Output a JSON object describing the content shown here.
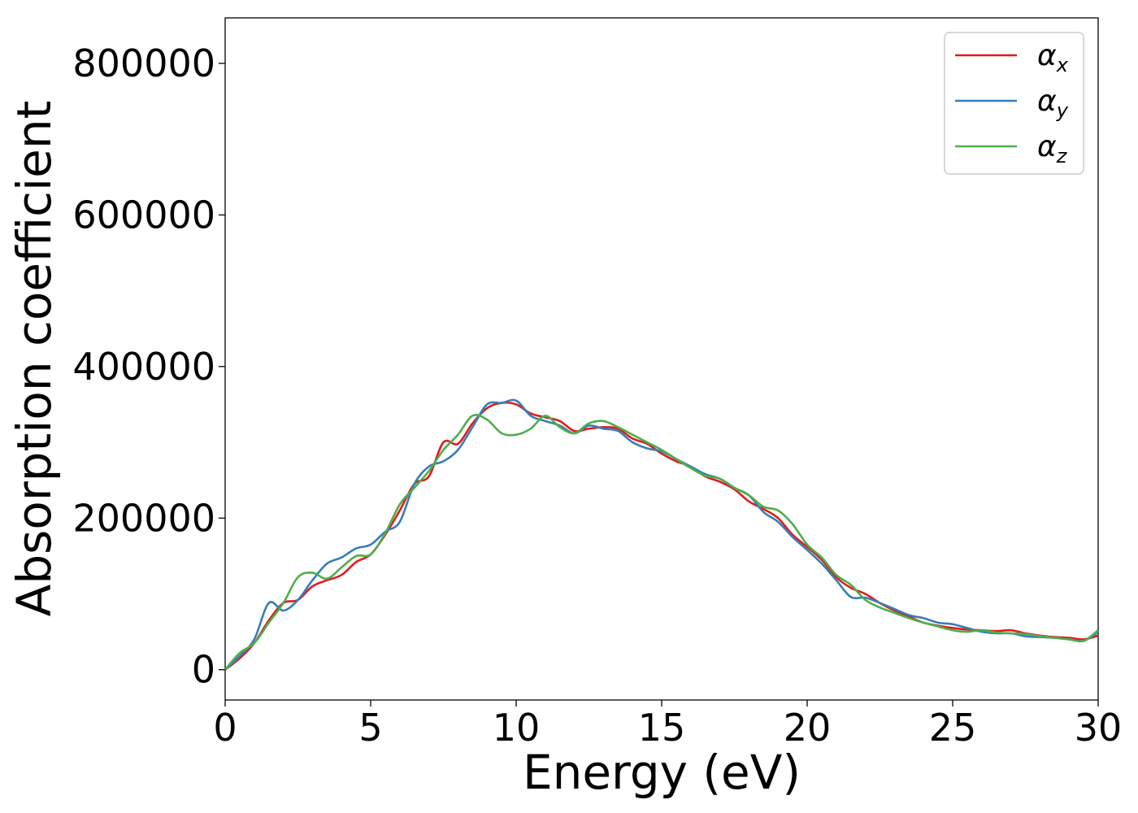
{
  "chart_data": {
    "type": "line",
    "title": "",
    "xlabel": "Energy (eV)",
    "ylabel": "Absorption coefficient",
    "xlim": [
      0,
      30
    ],
    "ylim": [
      -40000,
      860000
    ],
    "xticks": [
      0,
      5,
      10,
      15,
      20,
      25,
      30
    ],
    "xtick_labels": [
      "0",
      "5",
      "10",
      "15",
      "20",
      "25",
      "30"
    ],
    "yticks": [
      0,
      200000,
      400000,
      600000,
      800000
    ],
    "ytick_labels": [
      "0",
      "200000",
      "400000",
      "600000",
      "800000"
    ],
    "grid": false,
    "legend_position": "top-right",
    "series": [
      {
        "name": "α",
        "subscript": "x",
        "color": "#e41a1c",
        "x": [
          0,
          0.5,
          1,
          1.5,
          2,
          2.5,
          3,
          3.5,
          4,
          4.5,
          5,
          5.5,
          6,
          6.5,
          7,
          7.5,
          8,
          8.5,
          9,
          9.5,
          10,
          10.5,
          11,
          11.5,
          12,
          12.5,
          13,
          13.5,
          14,
          14.5,
          15,
          15.5,
          16,
          16.5,
          17,
          17.5,
          18,
          18.5,
          19,
          19.5,
          20,
          20.5,
          21,
          21.5,
          22,
          22.5,
          23,
          23.5,
          24,
          24.5,
          25,
          25.5,
          26,
          26.5,
          27,
          27.5,
          28,
          28.5,
          29,
          29.5,
          30
        ],
        "y": [
          0,
          15000,
          35000,
          65000,
          88000,
          92000,
          110000,
          118000,
          125000,
          142000,
          152000,
          178000,
          210000,
          245000,
          255000,
          300000,
          298000,
          325000,
          345000,
          352000,
          350000,
          338000,
          333000,
          328000,
          315000,
          318000,
          320000,
          318000,
          305000,
          298000,
          285000,
          275000,
          268000,
          255000,
          248000,
          238000,
          222000,
          212000,
          200000,
          178000,
          162000,
          145000,
          122000,
          108000,
          100000,
          88000,
          78000,
          70000,
          62000,
          58000,
          55000,
          53000,
          52000,
          51000,
          52000,
          48000,
          45000,
          43000,
          42000,
          40000,
          45000
        ]
      },
      {
        "name": "α",
        "subscript": "y",
        "color": "#377eb8",
        "x": [
          0,
          0.5,
          1,
          1.5,
          2,
          2.5,
          3,
          3.5,
          4,
          4.5,
          5,
          5.5,
          6,
          6.5,
          7,
          7.5,
          8,
          8.5,
          9,
          9.5,
          10,
          10.5,
          11,
          11.5,
          12,
          12.5,
          13,
          13.5,
          14,
          14.5,
          15,
          15.5,
          16,
          16.5,
          17,
          17.5,
          18,
          18.5,
          19,
          19.5,
          20,
          20.5,
          21,
          21.5,
          22,
          22.5,
          23,
          23.5,
          24,
          24.5,
          25,
          25.5,
          26,
          26.5,
          27,
          27.5,
          28,
          28.5,
          29,
          29.5,
          30
        ],
        "y": [
          0,
          18000,
          40000,
          88000,
          78000,
          92000,
          118000,
          140000,
          148000,
          160000,
          165000,
          182000,
          195000,
          245000,
          268000,
          275000,
          290000,
          320000,
          350000,
          352000,
          355000,
          335000,
          328000,
          322000,
          312000,
          322000,
          318000,
          315000,
          300000,
          292000,
          288000,
          278000,
          268000,
          258000,
          252000,
          240000,
          230000,
          208000,
          195000,
          175000,
          158000,
          140000,
          118000,
          96000,
          95000,
          88000,
          80000,
          72000,
          68000,
          62000,
          60000,
          55000,
          50000,
          48000,
          48000,
          44000,
          43000,
          42000,
          40000,
          38000,
          50000
        ]
      },
      {
        "name": "α",
        "subscript": "z",
        "color": "#4daf4a",
        "x": [
          0,
          0.5,
          1,
          1.5,
          2,
          2.5,
          3,
          3.5,
          4,
          4.5,
          5,
          5.5,
          6,
          6.5,
          7,
          7.5,
          8,
          8.5,
          9,
          9.5,
          10,
          10.5,
          11,
          11.5,
          12,
          12.5,
          13,
          13.5,
          14,
          14.5,
          15,
          15.5,
          16,
          16.5,
          17,
          17.5,
          18,
          18.5,
          19,
          19.5,
          20,
          20.5,
          21,
          21.5,
          22,
          22.5,
          23,
          23.5,
          24,
          24.5,
          25,
          25.5,
          26,
          26.5,
          27,
          27.5,
          28,
          28.5,
          29,
          29.5,
          30
        ],
        "y": [
          0,
          22000,
          35000,
          62000,
          88000,
          122000,
          128000,
          120000,
          135000,
          150000,
          152000,
          180000,
          218000,
          240000,
          262000,
          290000,
          310000,
          335000,
          330000,
          312000,
          310000,
          318000,
          335000,
          320000,
          312000,
          325000,
          328000,
          320000,
          310000,
          300000,
          290000,
          278000,
          266000,
          256000,
          252000,
          240000,
          230000,
          215000,
          210000,
          192000,
          165000,
          148000,
          125000,
          112000,
          92000,
          82000,
          75000,
          68000,
          62000,
          57000,
          52000,
          50000,
          52000,
          49000,
          48000,
          47000,
          44000,
          42000,
          40000,
          38000,
          52000
        ]
      }
    ]
  }
}
